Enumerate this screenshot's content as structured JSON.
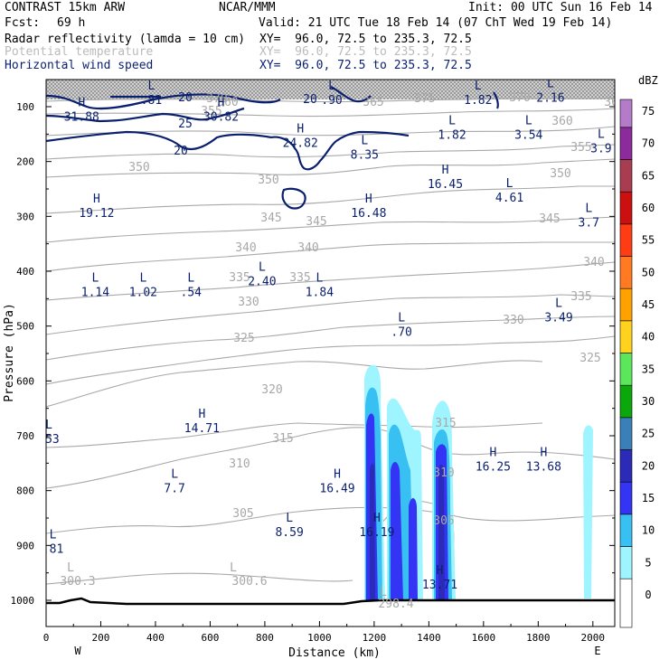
{
  "header": {
    "model": "CONTRAST 15km ARW",
    "fcst_label": "Fcst:",
    "fcst_value": "69 h",
    "center": "NCAR/MMM",
    "init": "Init: 00 UTC Sun 16 Feb 14",
    "valid": "Valid: 21 UTC Tue 18 Feb 14 (07 ChT Wed 19 Feb 14)",
    "fields": [
      {
        "name": "Radar reflectivity (lamda = 10 cm)",
        "xy": "XY=  96.0, 72.5 to 235.3, 72.5",
        "color": "#000000"
      },
      {
        "name": "Potential temperature",
        "xy": "XY=  96.0, 72.5 to 235.3, 72.5",
        "color": "#bbbbbb"
      },
      {
        "name": "Horizontal wind speed",
        "xy": "XY=  96.0, 72.5 to 235.3, 72.5",
        "color": "#0a1f6e"
      }
    ]
  },
  "chart_data": {
    "type": "cross-section",
    "xlabel": "Distance (km)",
    "ylabel": "Pressure (hPa)",
    "x_ticks": [
      0,
      200,
      400,
      600,
      800,
      1000,
      1200,
      1400,
      1600,
      1800,
      2000
    ],
    "y_ticks": [
      100,
      200,
      300,
      400,
      500,
      600,
      700,
      800,
      900,
      1000
    ],
    "xlim": [
      0,
      2080
    ],
    "ylim": [
      1050,
      55
    ],
    "left_end_label": "W",
    "right_end_label": "E",
    "colorbar": {
      "unit": "dBZ",
      "levels": [
        "0",
        "5",
        "10",
        "15",
        "20",
        "25",
        "30",
        "35",
        "40",
        "45",
        "50",
        "55",
        "60",
        "65",
        "70",
        "75"
      ],
      "colors": [
        "#ffffff",
        "#9ff5ff",
        "#38c0f2",
        "#3434f4",
        "#2b2bb8",
        "#3a7fb8",
        "#0aa80a",
        "#5ce65c",
        "#ffd21e",
        "#ffa200",
        "#ff7a20",
        "#ff3c14",
        "#cc1010",
        "#a83c50",
        "#8c2c9c",
        "#b47cc8"
      ]
    },
    "wind_contours": [
      "20",
      "25",
      "20",
      "20"
    ],
    "theta_labels": [
      "300.3",
      "300.6",
      "298.4",
      "305",
      "305",
      "310",
      "310",
      "315",
      "315",
      "320",
      "325",
      "325",
      "330",
      "330",
      "335",
      "335",
      "335",
      "340",
      "340",
      "340",
      "345",
      "345",
      "345",
      "350",
      "350",
      "350",
      "355",
      "355",
      "360",
      "360",
      "365",
      "365",
      "370",
      "370",
      "375"
    ],
    "extrema": [
      {
        "type": "H",
        "value": "31.88",
        "x": 130,
        "p": 112
      },
      {
        "type": "L",
        "value": ".81",
        "x": 385,
        "p": 82
      },
      {
        "type": "H",
        "value": "30.82",
        "x": 640,
        "p": 112
      },
      {
        "type": "L",
        "value": ".90",
        "x": 1045,
        "p": 82
      },
      {
        "type": "L",
        "value": "1.82",
        "x": 1580,
        "p": 82
      },
      {
        "type": "L",
        "value": "2.16",
        "x": 1845,
        "p": 78
      },
      {
        "type": "H",
        "value": "24.82",
        "x": 930,
        "p": 160
      },
      {
        "type": "L",
        "value": "1.82",
        "x": 1485,
        "p": 145
      },
      {
        "type": "L",
        "value": "3.54",
        "x": 1765,
        "p": 145
      },
      {
        "type": "L",
        "value": "3.9",
        "x": 2030,
        "p": 170
      },
      {
        "type": "L",
        "value": "8.35",
        "x": 1165,
        "p": 182
      },
      {
        "type": "H",
        "value": "16.45",
        "x": 1460,
        "p": 235
      },
      {
        "type": "L",
        "value": "4.61",
        "x": 1695,
        "p": 260
      },
      {
        "type": "H",
        "value": "19.12",
        "x": 185,
        "p": 288
      },
      {
        "type": "H",
        "value": "16.48",
        "x": 1180,
        "p": 288
      },
      {
        "type": "L",
        "value": "3.7",
        "x": 1985,
        "p": 305
      },
      {
        "type": "L",
        "value": "2.40",
        "x": 790,
        "p": 412
      },
      {
        "type": "L",
        "value": "1.14",
        "x": 180,
        "p": 432
      },
      {
        "type": "L",
        "value": "1.02",
        "x": 355,
        "p": 432
      },
      {
        "type": "L",
        "value": ".54",
        "x": 530,
        "p": 432
      },
      {
        "type": "L",
        "value": "1.84",
        "x": 1000,
        "p": 432
      },
      {
        "type": "L",
        "value": "3.49",
        "x": 1875,
        "p": 478
      },
      {
        "type": "L",
        "value": ".70",
        "x": 1300,
        "p": 505
      },
      {
        "type": "H",
        "value": "14.71",
        "x": 570,
        "p": 680
      },
      {
        "type": "L",
        "value": ".53",
        "x": 10,
        "p": 700
      },
      {
        "type": "H",
        "value": "16.25",
        "x": 1635,
        "p": 750
      },
      {
        "type": "H",
        "value": "13.68",
        "x": 1820,
        "p": 750
      },
      {
        "type": "L",
        "value": "7.7",
        "x": 470,
        "p": 790
      },
      {
        "type": "H",
        "value": "16.49",
        "x": 1065,
        "p": 790
      },
      {
        "type": "L",
        "value": "8.59",
        "x": 890,
        "p": 870
      },
      {
        "type": "H",
        "value": "16.19",
        "x": 1210,
        "p": 870
      },
      {
        "type": "L",
        "value": ".81",
        "x": 25,
        "p": 900
      },
      {
        "type": "H",
        "value": "13.71",
        "x": 1440,
        "p": 965
      }
    ]
  }
}
